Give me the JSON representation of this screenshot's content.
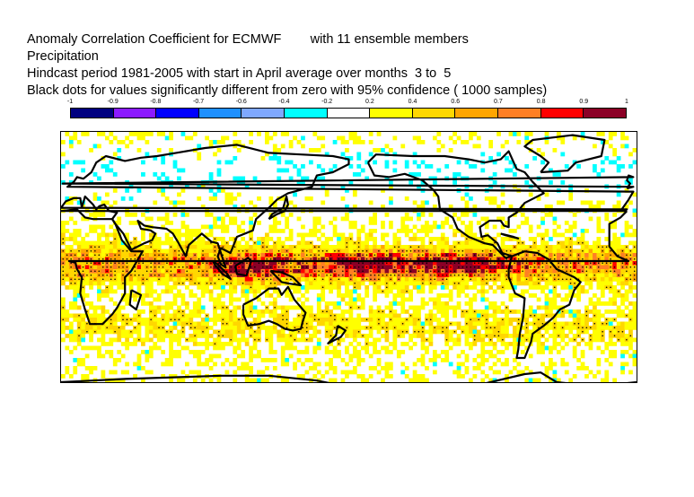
{
  "title_lines": [
    "Anomaly Correlation Coefficient for ECMWF        with 11 ensemble members",
    "Precipitation",
    "Hindcast period 1981-2005 with start in April average over months  3 to  5",
    "Black dots for values significantly different from zero with 95% confidence ( 1000 samples)"
  ],
  "colorbar": {
    "tick_labels": [
      "-1",
      "-0.9",
      "-0.8",
      "-0.7",
      "-0.6",
      "-0.4",
      "-0.2",
      "0.2",
      "0.4",
      "0.6",
      "0.7",
      "0.8",
      "0.9",
      "1"
    ],
    "colors": [
      "#000080",
      "#8c1aff",
      "#0000ff",
      "#1e90ff",
      "#7fa8ff",
      "#00ffff",
      "#ffffff",
      "#ffff00",
      "#ffd700",
      "#ffa500",
      "#ff7f24",
      "#ff0000",
      "#8b0026"
    ]
  },
  "map": {
    "projection": "equirectangular",
    "variable": "Precipitation anomaly correlation",
    "extent": {
      "lon": [
        0,
        360
      ],
      "lat": [
        -70,
        85
      ]
    },
    "features": [
      {
        "name": "equatorial-pacific-max",
        "value": 0.8,
        "color": "#ff0000"
      },
      {
        "name": "indo-pacific-warm-pool-max",
        "value": 0.8,
        "color": "#ff0000"
      },
      {
        "name": "tropical-pacific-band",
        "value": 0.6,
        "color": "#ffa500"
      },
      {
        "name": "subtropical-positive-field",
        "value": 0.2,
        "color": "#ffff00"
      },
      {
        "name": "scattered-negative-cells",
        "value": -0.2,
        "color": "#00ffff"
      }
    ]
  }
}
